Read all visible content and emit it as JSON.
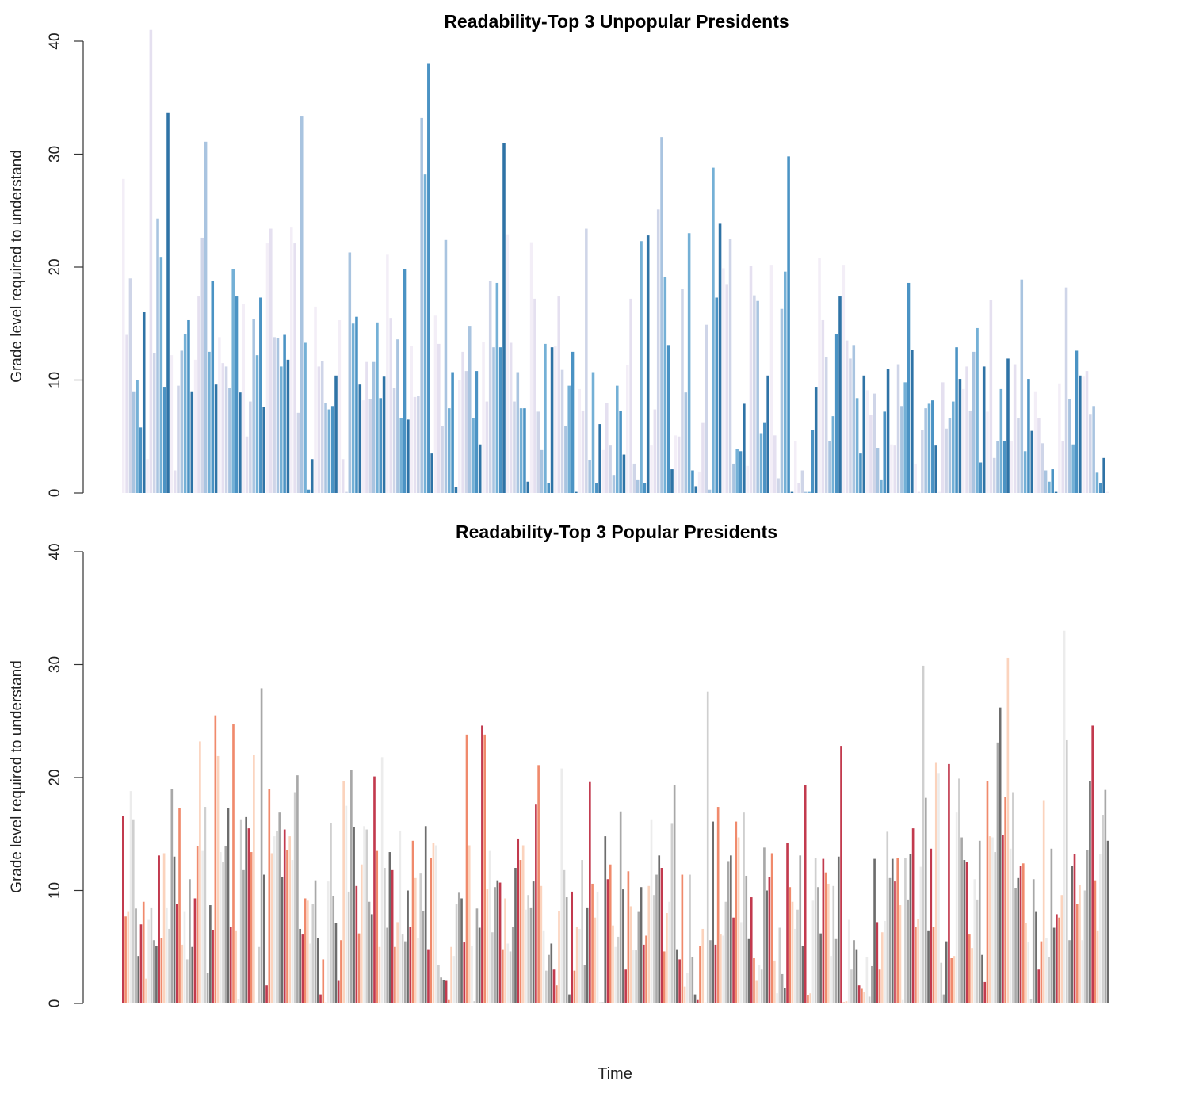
{
  "chart_data": [
    {
      "type": "bar",
      "title": "Readability-Top 3 Unpopular Presidents",
      "ylabel": "Grade level required to understand",
      "xlabel": "",
      "ylim": [
        0,
        40
      ],
      "yticks": [
        0,
        10,
        20,
        30,
        40
      ],
      "grid": false,
      "legend": "none",
      "palette": [
        "#f3eef7",
        "#e5e0f0",
        "#cfd5e8",
        "#a9c4e0",
        "#74b0d6",
        "#4b93c4",
        "#2f73a6"
      ],
      "values": [
        27.8,
        14.0,
        19.0,
        9.0,
        10.0,
        5.8,
        16.0,
        3.0,
        41.0,
        12.4,
        24.3,
        20.9,
        9.4,
        33.7,
        12.2,
        2.0,
        9.5,
        12.6,
        14.1,
        15.3,
        9.0,
        11.8,
        17.4,
        22.6,
        31.1,
        12.5,
        18.8,
        9.6,
        13.8,
        11.5,
        11.2,
        9.3,
        19.8,
        17.4,
        8.9,
        16.7,
        5.0,
        8.1,
        15.4,
        12.2,
        17.3,
        7.6,
        22.1,
        23.4,
        13.8,
        13.7,
        11.2,
        14.0,
        11.8,
        23.5,
        22.1,
        7.1,
        33.4,
        13.3,
        0.3,
        3.0,
        16.5,
        11.2,
        11.7,
        8.0,
        7.4,
        7.7,
        10.4,
        15.3,
        3.0,
        0.1,
        21.3,
        15.0,
        15.6,
        9.6,
        8.2,
        11.6,
        8.3,
        11.6,
        15.1,
        8.4,
        10.3,
        21.1,
        15.5,
        9.3,
        13.6,
        6.6,
        19.8,
        6.5,
        13.0,
        8.5,
        8.6,
        33.2,
        28.2,
        38.0,
        3.5,
        15.7,
        13.2,
        5.9,
        22.4,
        7.5,
        10.7,
        0.5,
        10.0,
        12.5,
        10.8,
        14.8,
        6.6,
        10.8,
        4.3,
        13.4,
        8.1,
        18.8,
        12.9,
        18.6,
        12.9,
        31.0,
        22.9,
        13.3,
        8.1,
        10.7,
        7.5,
        7.5,
        1.0,
        22.2,
        17.2,
        7.2,
        3.8,
        13.2,
        0.9,
        12.9,
        13.0,
        17.4,
        10.9,
        5.9,
        9.5,
        12.5,
        0.1,
        9.2,
        7.3,
        23.4,
        2.9,
        10.7,
        0.9,
        6.1,
        3.8,
        8.0,
        4.2,
        1.6,
        9.5,
        7.3,
        3.4,
        11.3,
        17.2,
        2.6,
        1.2,
        22.3,
        0.9,
        22.8,
        4.2,
        7.4,
        25.1,
        31.5,
        19.1,
        13.1,
        2.1,
        5.1,
        5.0,
        18.1,
        8.9,
        23.0,
        2.0,
        0.6,
        1.9,
        6.2,
        14.9,
        0.3,
        28.8,
        17.3,
        23.9,
        19.9,
        18.5,
        22.5,
        2.6,
        3.9,
        3.7,
        7.9,
        2.4,
        20.1,
        17.5,
        17.0,
        5.3,
        6.2,
        10.4,
        20.2,
        5.1,
        1.3,
        16.3,
        19.6,
        29.8,
        0.1,
        4.6,
        0.9,
        2.0,
        0.1,
        0.1,
        5.6,
        9.4,
        20.8,
        15.3,
        12.0,
        4.6,
        6.8,
        14.1,
        17.4,
        20.2,
        13.5,
        11.9,
        13.1,
        8.4,
        3.5,
        10.4,
        9.1,
        6.9,
        8.8,
        4.0,
        1.2,
        7.2,
        11.0,
        4.3,
        4.2,
        11.4,
        7.7,
        9.8,
        18.6,
        12.7,
        2.6,
        0.1,
        5.6,
        7.5,
        7.9,
        8.2,
        4.2,
        0.1,
        9.8,
        5.7,
        6.6,
        8.1,
        12.9,
        10.1,
        9.2,
        11.2,
        7.3,
        12.5,
        14.6,
        2.7,
        11.2,
        7.2,
        17.1,
        3.1,
        4.6,
        9.2,
        4.6,
        11.9,
        4.6,
        11.4,
        6.6,
        18.9,
        3.7,
        10.1,
        5.5,
        9.0,
        6.6,
        4.4,
        2.0,
        1.0,
        2.1,
        0.1,
        9.7,
        4.6,
        18.2,
        8.3,
        4.3,
        12.6,
        10.4,
        10.3,
        10.8,
        7.0,
        7.7,
        1.8,
        0.9,
        3.1,
        0.1
      ]
    },
    {
      "type": "bar",
      "title": "Readability-Top 3 Popular Presidents",
      "ylabel": "Grade level required to understand",
      "xlabel": "Time",
      "ylim": [
        0,
        40
      ],
      "yticks": [
        0,
        10,
        20,
        30,
        40
      ],
      "grid": false,
      "legend": "none",
      "palette": [
        "#c23a4e",
        "#f08a6c",
        "#fbd3bd",
        "#ececec",
        "#cfcfcf",
        "#a8a8a8",
        "#6d6d6d"
      ],
      "values": [
        16.6,
        7.7,
        8.1,
        18.8,
        16.3,
        8.4,
        4.2,
        7.0,
        9.0,
        2.2,
        7.4,
        8.5,
        5.6,
        5.1,
        13.1,
        5.8,
        13.3,
        8.5,
        6.6,
        19.0,
        13.0,
        8.8,
        17.3,
        5.2,
        8.1,
        3.9,
        11.0,
        5.0,
        9.3,
        13.9,
        23.2,
        13.5,
        17.4,
        2.7,
        8.7,
        6.5,
        25.5,
        21.9,
        13.4,
        12.5,
        13.9,
        17.3,
        6.8,
        24.7,
        6.4,
        0.4,
        16.3,
        11.8,
        16.5,
        15.5,
        13.4,
        22.0,
        0.1,
        5.0,
        27.9,
        11.4,
        1.6,
        19.0,
        13.3,
        14.8,
        15.3,
        16.9,
        11.2,
        15.4,
        13.6,
        14.8,
        12.7,
        18.7,
        20.2,
        6.6,
        6.1,
        9.3,
        9.1,
        5.3,
        8.8,
        10.9,
        5.8,
        0.8,
        3.9,
        0.1,
        10.8,
        16.0,
        9.5,
        7.1,
        2.0,
        5.6,
        19.7,
        17.5,
        9.9,
        20.7,
        15.6,
        10.4,
        6.2,
        12.3,
        15.7,
        15.4,
        9.0,
        7.9,
        20.1,
        13.5,
        5.0,
        21.8,
        12.0,
        6.7,
        13.4,
        11.8,
        5.0,
        7.2,
        15.3,
        6.1,
        5.5,
        10.0,
        6.8,
        14.4,
        11.1,
        5.8,
        11.5,
        8.2,
        15.7,
        4.8,
        12.9,
        14.2,
        14.0,
        3.4,
        2.3,
        2.1,
        2.0,
        0.3,
        5.0,
        4.2,
        8.8,
        9.8,
        9.3,
        5.4,
        23.8,
        14.0,
        5.1,
        0.2,
        8.4,
        6.7,
        24.6,
        23.8,
        10.1,
        13.5,
        6.3,
        10.3,
        10.9,
        10.7,
        4.8,
        9.3,
        5.3,
        4.6,
        6.8,
        12.0,
        14.6,
        12.7,
        14.0,
        8.3,
        9.6,
        8.5,
        10.8,
        17.6,
        21.1,
        10.4,
        6.4,
        2.9,
        4.3,
        5.3,
        3.0,
        1.6,
        8.2,
        20.8,
        11.8,
        9.4,
        0.8,
        9.9,
        2.9,
        6.8,
        6.6,
        12.7,
        3.4,
        8.5,
        19.6,
        10.6,
        7.6,
        9.9,
        0.1,
        0.1,
        14.8,
        11.0,
        12.3,
        6.9,
        5.0,
        5.9,
        17.0,
        10.1,
        3.0,
        11.7,
        8.6,
        4.7,
        4.7,
        8.1,
        10.3,
        5.2,
        6.0,
        10.4,
        16.3,
        9.6,
        11.4,
        13.1,
        12.0,
        4.6,
        8.0,
        9.0,
        15.9,
        19.3,
        4.8,
        3.9,
        11.4,
        1.5,
        2.7,
        11.4,
        4.1,
        0.8,
        0.3,
        5.1,
        6.6,
        0.1,
        27.6,
        5.6,
        16.1,
        5.2,
        17.4,
        6.1,
        6.0,
        9.0,
        12.6,
        13.1,
        7.6,
        16.1,
        14.7,
        7.2,
        16.9,
        11.3,
        5.7,
        9.4,
        4.0,
        2.0,
        3.4,
        3.0,
        13.8,
        10.0,
        11.2,
        13.3,
        3.8,
        0.9,
        6.7,
        2.6,
        1.4,
        14.2,
        10.3,
        9.0,
        6.6,
        8.3,
        13.1,
        5.1,
        19.3,
        0.7,
        0.9,
        9.1,
        12.9,
        10.3,
        6.2,
        12.8,
        11.6,
        10.6,
        4.2,
        10.4,
        5.7,
        13.0,
        22.8,
        0.1,
        0.2,
        7.4,
        3.0,
        5.6,
        4.8,
        1.6,
        1.3,
        1.0,
        4.1,
        0.6,
        3.3,
        12.8,
        7.2,
        3.0,
        6.3,
        7.3,
        15.2,
        11.1,
        12.8,
        10.8,
        12.9,
        8.7,
        0.3,
        12.9,
        9.2,
        13.2,
        15.5,
        6.8,
        7.5,
        12.1,
        29.9,
        18.2,
        6.4,
        13.7,
        6.8,
        21.3,
        20.4,
        3.6,
        0.8,
        5.5,
        21.2,
        4.0,
        4.2,
        16.9,
        19.9,
        14.7,
        12.7,
        12.5,
        6.1,
        4.9,
        11.0,
        9.2,
        14.4,
        4.3,
        1.9,
        19.7,
        14.8,
        14.7,
        13.4,
        23.1,
        26.2,
        14.9,
        18.3,
        30.6,
        13.7,
        18.7,
        10.2,
        11.1,
        12.2,
        12.4,
        7.1,
        5.4,
        0.4,
        11.0,
        8.1,
        3.0,
        5.5,
        18.0,
        5.8,
        4.1,
        13.7,
        6.7,
        7.9,
        7.6,
        9.6,
        33.0,
        23.3,
        5.6,
        12.2,
        13.2,
        8.8,
        10.5,
        5.6,
        10.0,
        13.6,
        19.7,
        24.6,
        10.9,
        6.4,
        13.2,
        16.7,
        18.9,
        14.4
      ]
    }
  ]
}
